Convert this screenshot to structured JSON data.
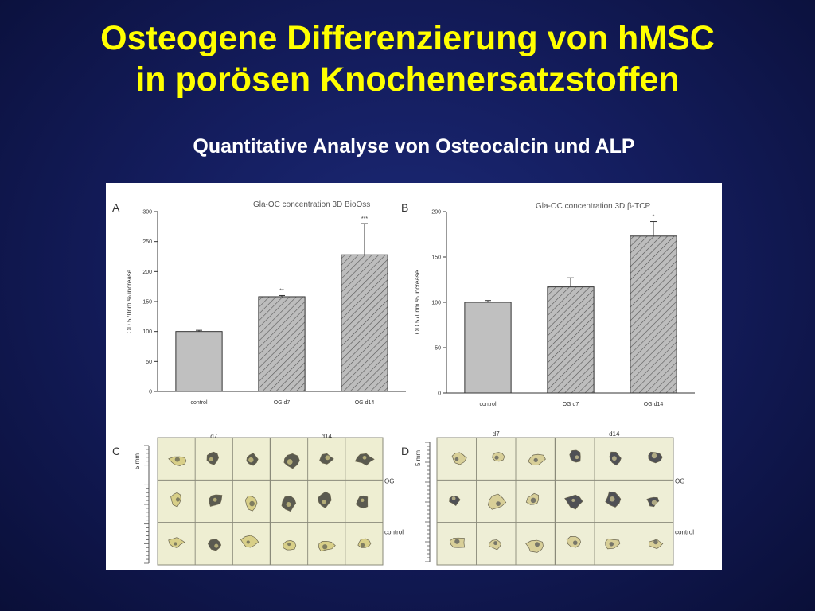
{
  "slide": {
    "title_line1": "Osteogene Differenzierung von hMSC",
    "title_line2": "in porösen Knochenersatzstoffen",
    "subtitle": "Quantitative Analyse von Osteocalcin und ALP"
  },
  "chart_data": [
    {
      "panel": "A",
      "type": "bar",
      "title": "Gla-OC concentration 3D BioOss",
      "ylabel": "OD 570nm % increase",
      "xlabel": "",
      "ylim": [
        0,
        300
      ],
      "yticks": [
        0,
        50,
        100,
        150,
        200,
        250,
        300
      ],
      "categories": [
        "control",
        "OG d7",
        "OG d14"
      ],
      "values": [
        100,
        158,
        228
      ],
      "errors": [
        2,
        2,
        52
      ],
      "significance": [
        "",
        "**",
        "***"
      ],
      "hatched": [
        false,
        true,
        true
      ],
      "grid": false
    },
    {
      "panel": "B",
      "type": "bar",
      "title": "Gla-OC concentration 3D β-TCP",
      "ylabel": "OD 570nm % increase",
      "xlabel": "",
      "ylim": [
        0,
        200
      ],
      "yticks": [
        0,
        50,
        100,
        150,
        200
      ],
      "categories": [
        "control",
        "OG d7",
        "OG d14"
      ],
      "values": [
        100,
        117,
        173
      ],
      "errors": [
        2,
        10,
        16
      ],
      "significance": [
        "",
        "",
        "*"
      ],
      "hatched": [
        false,
        true,
        true
      ],
      "grid": false
    }
  ],
  "photos": [
    {
      "panel": "C",
      "day_labels": [
        "d7",
        "d14"
      ],
      "scale_label": "5 mm",
      "row_labels": [
        "OG",
        "control"
      ],
      "colors": {
        "bg": "#eeeed2",
        "line": "#8a8a7a",
        "sample_light": "#d8cf88",
        "sample_dark": "#5a5a50"
      }
    },
    {
      "panel": "D",
      "day_labels": [
        "d7",
        "d14"
      ],
      "scale_label": "5 mm",
      "row_labels": [
        "OG",
        "control"
      ],
      "colors": {
        "bg": "#eeeed6",
        "line": "#8a8a7a",
        "sample_light": "#d8cf98",
        "sample_dark": "#4f5055"
      }
    }
  ],
  "colors": {
    "title": "#ffff00",
    "subtitle": "#ffffff",
    "control_bar": "#c0c0c0",
    "hatched_bar": "#b8b8b8",
    "hatch_line": "#555555"
  }
}
